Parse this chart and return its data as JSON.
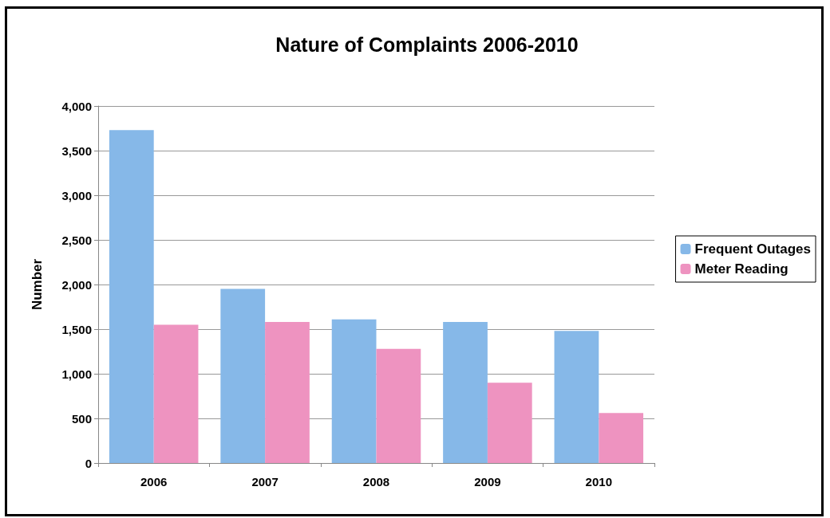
{
  "chart_data": {
    "type": "bar",
    "title": "Nature of Complaints 2006-2010",
    "ylabel": "Number",
    "categories": [
      "2006",
      "2007",
      "2008",
      "2009",
      "2010"
    ],
    "series": [
      {
        "name": "Frequent Outages",
        "color": "#86b8e8",
        "values": [
          3730,
          1950,
          1610,
          1580,
          1480
        ]
      },
      {
        "name": "Meter Reading",
        "color": "#ee93c0",
        "values": [
          1550,
          1580,
          1280,
          900,
          560
        ]
      }
    ],
    "ylim": [
      0,
      4000
    ],
    "yticks": [
      {
        "value": 0,
        "label": "0"
      },
      {
        "value": 500,
        "label": "500"
      },
      {
        "value": 1000,
        "label": "1,000"
      },
      {
        "value": 1500,
        "label": "1,500"
      },
      {
        "value": 2000,
        "label": "2,000"
      },
      {
        "value": 2500,
        "label": "2,500"
      },
      {
        "value": 3000,
        "label": "3,000"
      },
      {
        "value": 3500,
        "label": "3,500"
      },
      {
        "value": 4000,
        "label": "4,000"
      }
    ],
    "grid": "y",
    "legend": "right"
  }
}
